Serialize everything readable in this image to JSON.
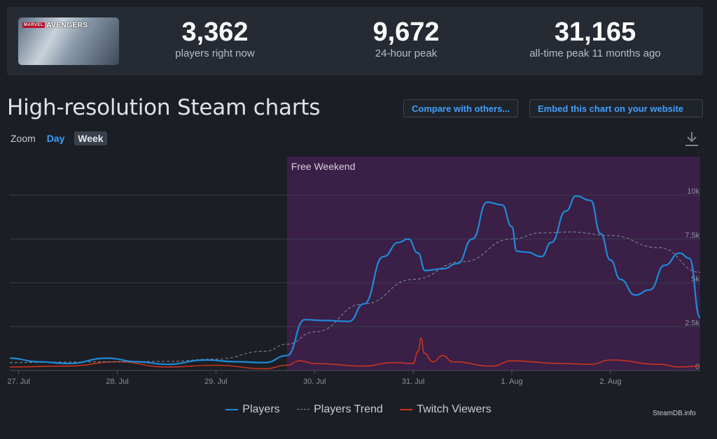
{
  "game": {
    "logo_badge": "MARVEL",
    "logo_text": "AVENGERS"
  },
  "stats": [
    {
      "value": "3,362",
      "label": "players right now"
    },
    {
      "value": "9,672",
      "label": "24-hour peak"
    },
    {
      "value": "31,165",
      "label": "all-time peak 11 months ago"
    }
  ],
  "page": {
    "title": "High-resolution Steam charts"
  },
  "buttons": {
    "compare": "Compare with others...",
    "embed": "Embed this chart on your website"
  },
  "zoom": {
    "label": "Zoom",
    "day": "Day",
    "week": "Week"
  },
  "icons": {
    "download": "download-icon"
  },
  "colors": {
    "players": "#1f8ad9",
    "trend": "#8a8f98",
    "twitch": "#c9351e",
    "band": "#3a1f47",
    "accent": "#3fa0ff"
  },
  "credit": "SteamDB.info",
  "chart_data": {
    "type": "line",
    "x_unit": "day",
    "x_ticks": [
      "27. Jul",
      "28. Jul",
      "29. Jul",
      "30. Jul",
      "31. Jul",
      "1. Aug",
      "2. Aug"
    ],
    "y_ticks": [
      "0",
      "2.5k",
      "5k",
      "7.5k",
      "10k"
    ],
    "xlim": [
      -0.09,
      6.91
    ],
    "ylim": [
      0,
      12200
    ],
    "band": {
      "label": "Free Weekend",
      "from": 2.72,
      "to": 6.91
    },
    "legend": [
      "Players",
      "Players Trend",
      "Twitch Viewers"
    ],
    "legend_position": "bottom",
    "grid": true,
    "series": [
      {
        "name": "Players",
        "style": "solid",
        "points": [
          [
            -0.09,
            700
          ],
          [
            0.2,
            500
          ],
          [
            0.5,
            400
          ],
          [
            0.9,
            700
          ],
          [
            1.2,
            500
          ],
          [
            1.5,
            350
          ],
          [
            1.9,
            600
          ],
          [
            2.2,
            500
          ],
          [
            2.5,
            450
          ],
          [
            2.72,
            850
          ],
          [
            2.9,
            2900
          ],
          [
            3.1,
            2850
          ],
          [
            3.35,
            2800
          ],
          [
            3.5,
            3800
          ],
          [
            3.7,
            6500
          ],
          [
            3.85,
            7300
          ],
          [
            3.95,
            7500
          ],
          [
            4.05,
            6700
          ],
          [
            4.12,
            5700
          ],
          [
            4.3,
            5800
          ],
          [
            4.45,
            6100
          ],
          [
            4.6,
            7500
          ],
          [
            4.75,
            9600
          ],
          [
            4.9,
            9450
          ],
          [
            5.0,
            8200
          ],
          [
            5.05,
            6800
          ],
          [
            5.15,
            6750
          ],
          [
            5.3,
            6500
          ],
          [
            5.4,
            7300
          ],
          [
            5.55,
            9100
          ],
          [
            5.65,
            9950
          ],
          [
            5.8,
            9700
          ],
          [
            5.9,
            7800
          ],
          [
            6.0,
            6300
          ],
          [
            6.1,
            5200
          ],
          [
            6.25,
            4300
          ],
          [
            6.4,
            4600
          ],
          [
            6.55,
            6000
          ],
          [
            6.7,
            6700
          ],
          [
            6.8,
            6400
          ],
          [
            6.91,
            3000
          ]
        ]
      },
      {
        "name": "Players Trend",
        "style": "dashed",
        "points": [
          [
            -0.09,
            450
          ],
          [
            0.5,
            480
          ],
          [
            1.0,
            500
          ],
          [
            1.5,
            520
          ],
          [
            2.0,
            650
          ],
          [
            2.5,
            1100
          ],
          [
            2.72,
            1500
          ],
          [
            3.0,
            2200
          ],
          [
            3.5,
            3800
          ],
          [
            4.0,
            5200
          ],
          [
            4.5,
            6200
          ],
          [
            5.0,
            7500
          ],
          [
            5.3,
            7850
          ],
          [
            5.6,
            7900
          ],
          [
            6.0,
            7700
          ],
          [
            6.5,
            7000
          ],
          [
            6.91,
            5600
          ]
        ]
      },
      {
        "name": "Twitch Viewers",
        "style": "solid",
        "points": [
          [
            -0.09,
            200
          ],
          [
            0.5,
            250
          ],
          [
            1.0,
            500
          ],
          [
            1.5,
            200
          ],
          [
            2.0,
            300
          ],
          [
            2.5,
            100
          ],
          [
            2.72,
            300
          ],
          [
            2.85,
            550
          ],
          [
            3.0,
            400
          ],
          [
            3.5,
            250
          ],
          [
            3.8,
            450
          ],
          [
            4.0,
            400
          ],
          [
            4.05,
            1100
          ],
          [
            4.08,
            1850
          ],
          [
            4.11,
            1000
          ],
          [
            4.2,
            500
          ],
          [
            4.3,
            850
          ],
          [
            4.4,
            500
          ],
          [
            4.8,
            250
          ],
          [
            5.0,
            550
          ],
          [
            5.5,
            400
          ],
          [
            5.8,
            350
          ],
          [
            6.0,
            600
          ],
          [
            6.5,
            350
          ],
          [
            6.7,
            200
          ],
          [
            6.91,
            250
          ]
        ]
      }
    ]
  }
}
